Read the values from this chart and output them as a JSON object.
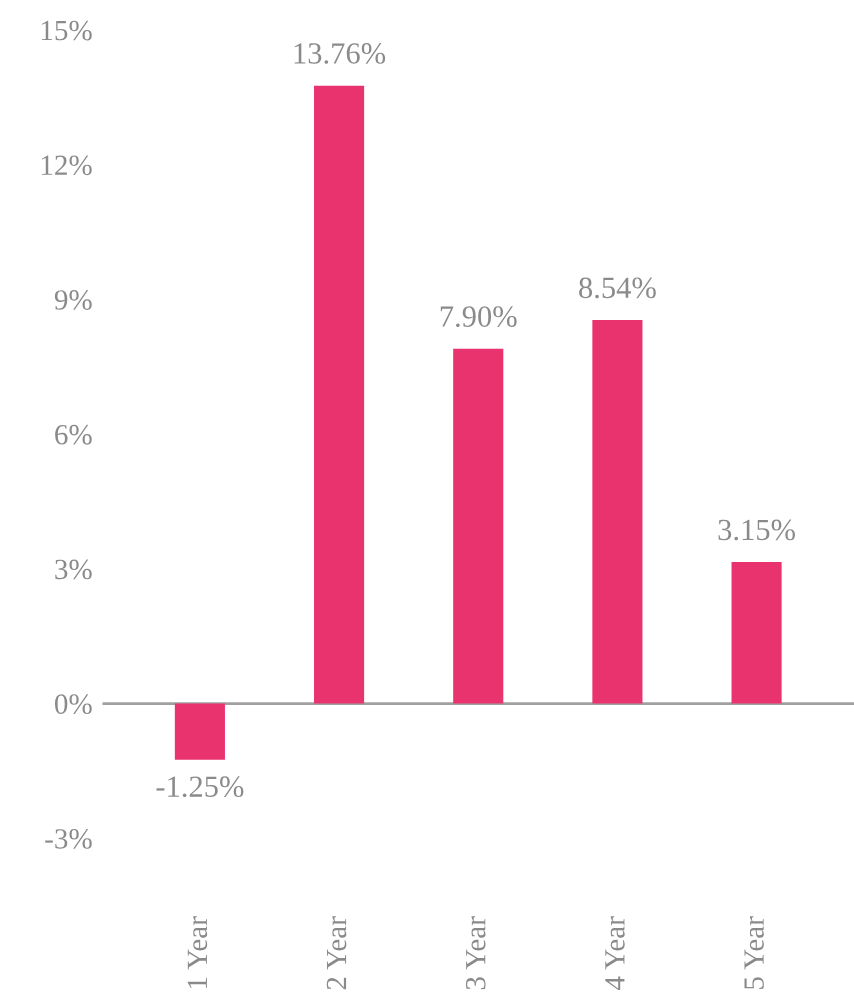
{
  "chart_data": {
    "type": "bar",
    "categories": [
      "1 Year",
      "2 Year",
      "3 Year",
      "4 Year",
      "5 Year"
    ],
    "values": [
      -1.25,
      13.76,
      7.9,
      8.54,
      3.15
    ],
    "value_labels": [
      "-1.25%",
      "13.76%",
      "7.90%",
      "8.54%",
      "3.15%"
    ],
    "color": "#e8336e",
    "ylim": [
      -3,
      15
    ],
    "yticks": [
      {
        "value": -3,
        "label": "-3%"
      },
      {
        "value": 0,
        "label": "0%"
      },
      {
        "value": 3,
        "label": "3%"
      },
      {
        "value": 6,
        "label": "6%"
      },
      {
        "value": 9,
        "label": "9%"
      },
      {
        "value": 12,
        "label": "12%"
      },
      {
        "value": 15,
        "label": "15%"
      }
    ],
    "ref_lines": [
      {
        "axis": "y",
        "value": 0,
        "color": "#a0a0a0"
      }
    ],
    "grid": false
  }
}
